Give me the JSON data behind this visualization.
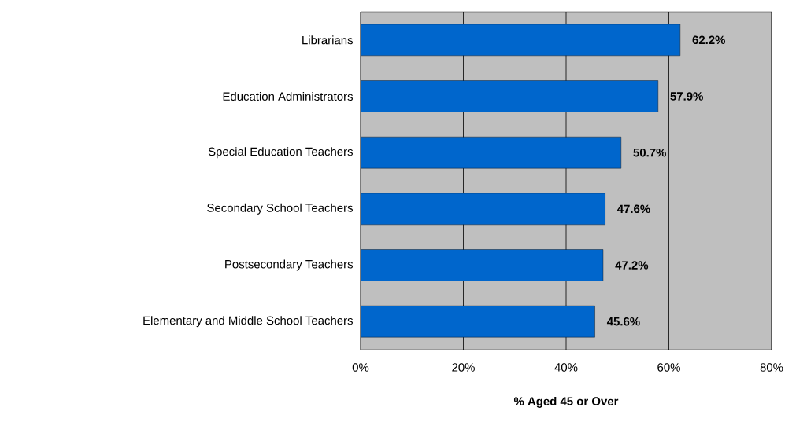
{
  "chart_data": {
    "type": "bar",
    "orientation": "horizontal",
    "xlabel": "% Aged 45 or Over",
    "categories": [
      "Librarians",
      "Education Administrators",
      "Special Education Teachers",
      "Secondary School Teachers",
      "Postsecondary Teachers",
      "Elementary and Middle School Teachers"
    ],
    "values": [
      62.2,
      57.9,
      50.7,
      47.6,
      47.2,
      45.6
    ],
    "value_labels": [
      "62.2%",
      "57.9%",
      "50.7%",
      "47.6%",
      "47.2%",
      "45.6%"
    ],
    "color": "#0066cc",
    "xlim": [
      0,
      80
    ],
    "xticks": [
      {
        "value": 0,
        "label": "0%"
      },
      {
        "value": 20,
        "label": "20%"
      },
      {
        "value": 40,
        "label": "40%"
      },
      {
        "value": 60,
        "label": "60%"
      },
      {
        "value": 80,
        "label": "80%"
      }
    ],
    "grid": "x"
  }
}
